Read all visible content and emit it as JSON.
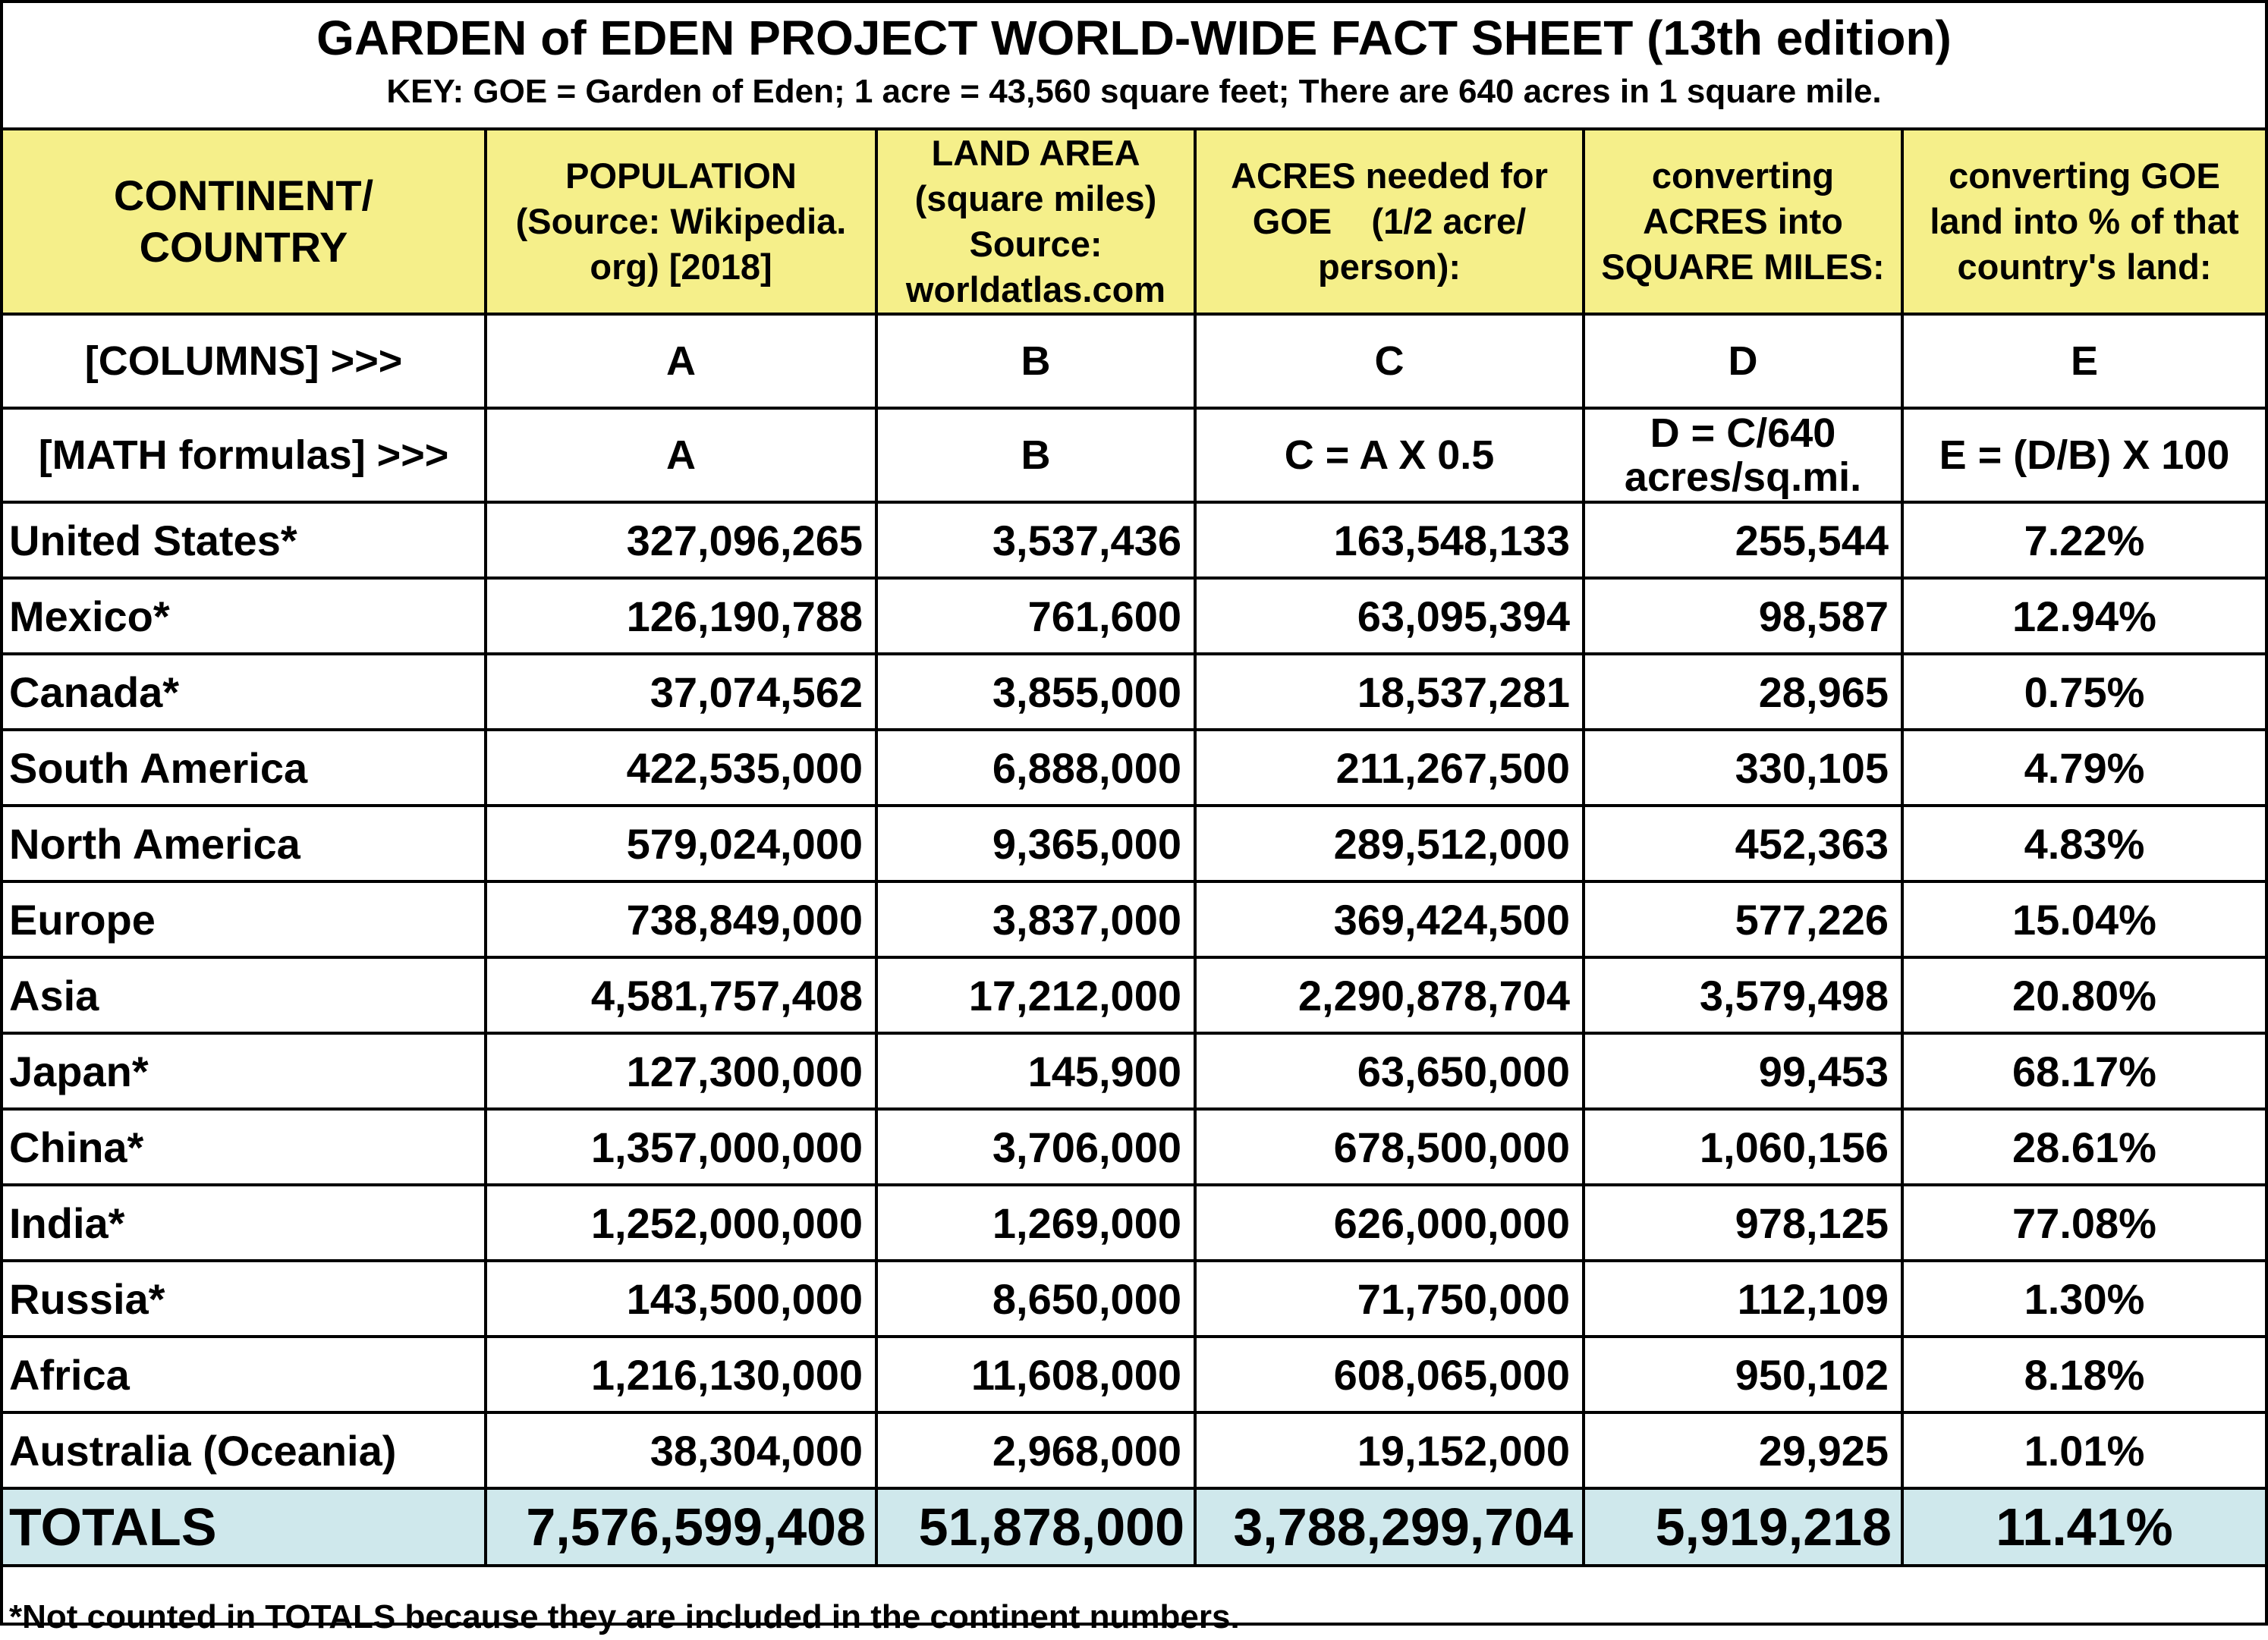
{
  "title": "GARDEN of EDEN PROJECT WORLD-WIDE FACT SHEET (13th edition)",
  "key": "KEY: GOE = Garden of Eden; 1 acre = 43,560 square feet; There are 640 acres in 1 square mile.",
  "headers": [
    [
      "CONTINENT/",
      "COUNTRY"
    ],
    [
      "POPULATION",
      "(Source: Wikipedia.",
      "org) [2018]"
    ],
    [
      "LAND AREA",
      "(square miles)",
      "Source:",
      "worldatlas.com"
    ],
    [
      "ACRES needed for",
      "GOE    (1/2 acre/",
      "person):"
    ],
    [
      "converting",
      "ACRES into",
      "SQUARE MILES:"
    ],
    [
      "converting GOE",
      "land into % of that",
      "country's land:"
    ]
  ],
  "columns_row": [
    "[COLUMNS] >>>",
    "A",
    "B",
    "C",
    "D",
    "E"
  ],
  "formulas_row": [
    "[MATH formulas] >>>",
    "A",
    "B",
    "C = A X 0.5",
    [
      "D = C/640",
      "acres/sq.mi."
    ],
    "E = (D/B) X 100"
  ],
  "rows": [
    [
      "United States*",
      "327,096,265",
      "3,537,436",
      "163,548,133",
      "255,544",
      "7.22%"
    ],
    [
      "Mexico*",
      "126,190,788",
      "761,600",
      "63,095,394",
      "98,587",
      "12.94%"
    ],
    [
      "Canada*",
      "37,074,562",
      "3,855,000",
      "18,537,281",
      "28,965",
      "0.75%"
    ],
    [
      "South America",
      "422,535,000",
      "6,888,000",
      "211,267,500",
      "330,105",
      "4.79%"
    ],
    [
      "North America",
      "579,024,000",
      "9,365,000",
      "289,512,000",
      "452,363",
      "4.83%"
    ],
    [
      "Europe",
      "738,849,000",
      "3,837,000",
      "369,424,500",
      "577,226",
      "15.04%"
    ],
    [
      "Asia",
      "4,581,757,408",
      "17,212,000",
      "2,290,878,704",
      "3,579,498",
      "20.80%"
    ],
    [
      "Japan*",
      "127,300,000",
      "145,900",
      "63,650,000",
      "99,453",
      "68.17%"
    ],
    [
      "China*",
      "1,357,000,000",
      "3,706,000",
      "678,500,000",
      "1,060,156",
      "28.61%"
    ],
    [
      "India*",
      "1,252,000,000",
      "1,269,000",
      "626,000,000",
      "978,125",
      "77.08%"
    ],
    [
      "Russia*",
      "143,500,000",
      "8,650,000",
      "71,750,000",
      "112,109",
      "1.30%"
    ],
    [
      "Africa",
      "1,216,130,000",
      "11,608,000",
      "608,065,000",
      "950,102",
      "8.18%"
    ],
    [
      "Australia (Oceania)",
      "38,304,000",
      "2,968,000",
      "19,152,000",
      "29,925",
      "1.01%"
    ]
  ],
  "totals": [
    "TOTALS",
    "7,576,599,408",
    "51,878,000",
    "3,788,299,704",
    "5,919,218",
    "11.41%"
  ],
  "footnote": "*Not counted in TOTALS because they are included in the continent numbers.",
  "colors": {
    "header_bg": "#f5ef8a",
    "totals_bg": "#cfe8ec",
    "border": "#000000"
  }
}
